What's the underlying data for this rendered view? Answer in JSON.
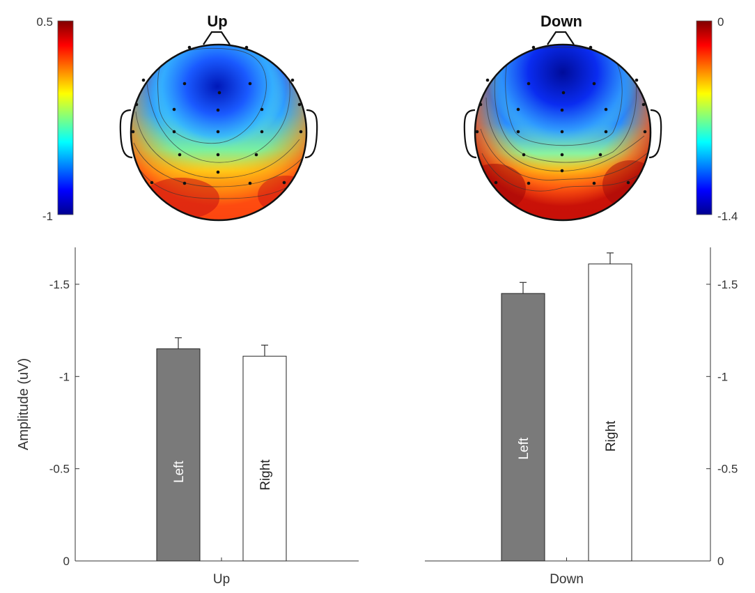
{
  "topomaps": [
    {
      "title": "Up",
      "colorbar": {
        "max_label": "0.5",
        "min_label": "-1",
        "range": [
          -1,
          0.5
        ]
      }
    },
    {
      "title": "Down",
      "colorbar": {
        "max_label": "0",
        "min_label": "-1.4",
        "range": [
          -1.4,
          0
        ]
      }
    }
  ],
  "colormap": "jet",
  "colors": {
    "left_bar": "#7a7a7a",
    "right_bar": "#ffffff",
    "axis": "#333333",
    "text": "#333333"
  },
  "chart_data": [
    {
      "type": "bar",
      "ylabel": "Amplitude (uV)",
      "xlabel": "Up",
      "y_direction": "reversed",
      "ylim": [
        0,
        -1.7
      ],
      "yticks": [
        0,
        -0.5,
        -1,
        -1.5
      ],
      "ytick_labels": [
        "0",
        "-0.5",
        "-1",
        "-1.5"
      ],
      "categories": [
        "Left",
        "Right"
      ],
      "values": [
        -1.15,
        -1.11
      ],
      "errors": [
        0.06,
        0.06
      ],
      "bar_colors": [
        "#7a7a7a",
        "#ffffff"
      ]
    },
    {
      "type": "bar",
      "ylabel": "",
      "xlabel": "Down",
      "y_direction": "reversed",
      "ylim": [
        0,
        -1.7
      ],
      "yticks": [
        0,
        -0.5,
        -1,
        -1.5
      ],
      "ytick_labels": [
        "0",
        "-0.5",
        "-1",
        "-1.5"
      ],
      "y_axis_side": "right",
      "categories": [
        "Left",
        "Right"
      ],
      "values": [
        -1.45,
        -1.61
      ],
      "errors": [
        0.06,
        0.06
      ],
      "bar_colors": [
        "#7a7a7a",
        "#ffffff"
      ]
    }
  ]
}
